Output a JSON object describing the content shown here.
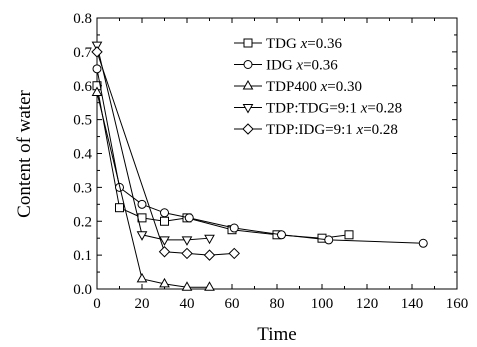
{
  "chart_data": {
    "type": "line",
    "xlabel": "Time",
    "ylabel": "Content of water",
    "xlim": [
      0,
      160
    ],
    "ylim": [
      0.0,
      0.8
    ],
    "xticks": [
      "0",
      "20",
      "40",
      "60",
      "80",
      "100",
      "120",
      "140",
      "160"
    ],
    "yticks": [
      "0.0",
      "0.1",
      "0.2",
      "0.3",
      "0.4",
      "0.5",
      "0.6",
      "0.7",
      "0.8"
    ],
    "grid": false,
    "legend_position": "top-right",
    "series": [
      {
        "name": "TDG",
        "name_x": "x",
        "name_value": "=0.36",
        "marker": "square",
        "x": [
          0,
          10,
          20,
          30,
          40,
          60,
          80,
          100,
          112
        ],
        "y": [
          0.6,
          0.24,
          0.21,
          0.2,
          0.21,
          0.175,
          0.16,
          0.15,
          0.16
        ]
      },
      {
        "name": "IDG",
        "name_x": "x",
        "name_value": "=0.36",
        "marker": "circle",
        "x": [
          0,
          10,
          20,
          30,
          41,
          61,
          82,
          103,
          145
        ],
        "y": [
          0.65,
          0.3,
          0.25,
          0.225,
          0.21,
          0.18,
          0.16,
          0.145,
          0.135
        ]
      },
      {
        "name": "TDP400",
        "name_x": "x",
        "name_value": "=0.30",
        "marker": "triangle-up",
        "x": [
          0,
          20,
          30,
          40,
          50
        ],
        "y": [
          0.58,
          0.03,
          0.015,
          0.005,
          0.005
        ]
      },
      {
        "name": "TDP:TDG=9:1",
        "name_x": "x",
        "name_value": "=0.28",
        "marker": "triangle-down",
        "x": [
          0,
          20,
          30,
          40,
          50
        ],
        "y": [
          0.72,
          0.16,
          0.145,
          0.145,
          0.15
        ]
      },
      {
        "name": "TDP:IDG=9:1",
        "name_x": "x",
        "name_value": "=0.28",
        "marker": "diamond",
        "x": [
          0,
          30,
          40,
          50,
          61
        ],
        "y": [
          0.7,
          0.11,
          0.105,
          0.1,
          0.105
        ]
      }
    ]
  }
}
